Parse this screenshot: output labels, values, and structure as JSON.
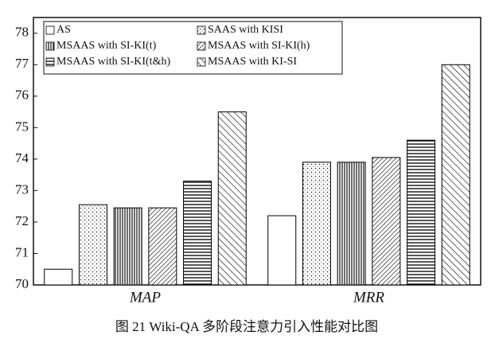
{
  "chart_data": {
    "type": "bar",
    "caption": "图 21   Wiki-QA 多阶段注意力引入性能对比图",
    "categories": [
      "MAP",
      "MRR"
    ],
    "series": [
      {
        "name": "AS",
        "color": "#000000",
        "pattern": "none",
        "values": [
          70.5,
          72.2
        ]
      },
      {
        "name": "SAAS with KISI",
        "color": "#000000",
        "pattern": "dots",
        "values": [
          72.55,
          73.9
        ]
      },
      {
        "name": "MSAAS with SI-KI(t)",
        "color": "#000000",
        "pattern": "vertical",
        "values": [
          72.45,
          73.9
        ]
      },
      {
        "name": "MSAAS with SI-KI(h)",
        "color": "#000000",
        "pattern": "dense-diagonal",
        "values": [
          72.45,
          74.05
        ]
      },
      {
        "name": "MSAAS with SI-KI(t&h)",
        "color": "#000000",
        "pattern": "horizontal",
        "values": [
          73.3,
          74.6
        ]
      },
      {
        "name": "MSAAS with KI-SI",
        "color": "#000000",
        "pattern": "diagonal",
        "values": [
          75.5,
          77.0
        ]
      }
    ],
    "ylim": [
      70,
      78.5
    ],
    "yticks": [
      70,
      71,
      72,
      73,
      74,
      75,
      76,
      77,
      78
    ],
    "grid": false,
    "legend": "upper left"
  }
}
